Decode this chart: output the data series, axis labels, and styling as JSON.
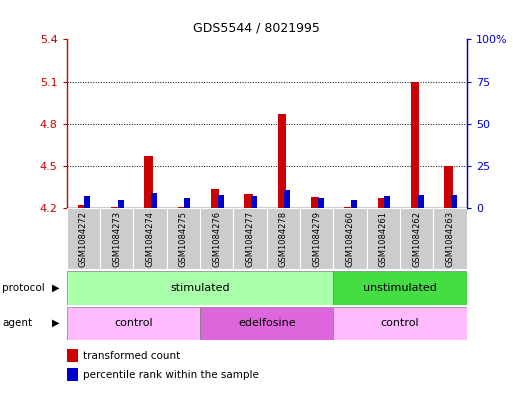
{
  "title": "GDS5544 / 8021995",
  "samples": [
    "GSM1084272",
    "GSM1084273",
    "GSM1084274",
    "GSM1084275",
    "GSM1084276",
    "GSM1084277",
    "GSM1084278",
    "GSM1084279",
    "GSM1084260",
    "GSM1084261",
    "GSM1084262",
    "GSM1084263"
  ],
  "red_values": [
    4.22,
    4.21,
    4.57,
    4.21,
    4.34,
    4.3,
    4.87,
    4.28,
    4.21,
    4.27,
    5.1,
    4.5
  ],
  "blue_values_pct": [
    7,
    5,
    9,
    6,
    8,
    7,
    11,
    6,
    5,
    7,
    8,
    8
  ],
  "red_base": 4.2,
  "ylim_left": [
    4.2,
    5.4
  ],
  "ylim_right": [
    0,
    100
  ],
  "yticks_left": [
    4.2,
    4.5,
    4.8,
    5.1,
    5.4
  ],
  "yticks_right": [
    0,
    25,
    50,
    75,
    100
  ],
  "ytick_labels_left": [
    "4.2",
    "4.5",
    "4.8",
    "5.1",
    "5.4"
  ],
  "ytick_labels_right": [
    "0",
    "25",
    "50",
    "75",
    "100%"
  ],
  "red_color": "#cc0000",
  "blue_color": "#0000cc",
  "protocol_groups": [
    {
      "label": "stimulated",
      "start": 0,
      "end": 7,
      "color": "#aaffaa"
    },
    {
      "label": "unstimulated",
      "start": 8,
      "end": 11,
      "color": "#44dd44"
    }
  ],
  "agent_groups": [
    {
      "label": "control",
      "start": 0,
      "end": 3,
      "color": "#ffbbff"
    },
    {
      "label": "edelfosine",
      "start": 4,
      "end": 7,
      "color": "#dd66dd"
    },
    {
      "label": "control",
      "start": 8,
      "end": 11,
      "color": "#ffbbff"
    }
  ],
  "sample_col_color": "#cccccc",
  "figsize": [
    5.13,
    3.93
  ],
  "dpi": 100
}
